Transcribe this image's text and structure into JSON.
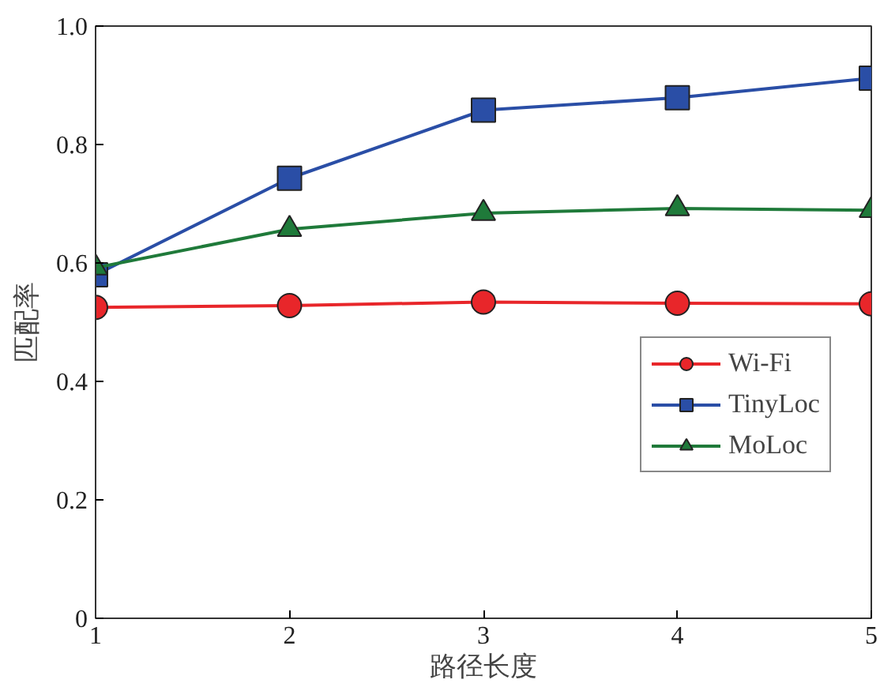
{
  "chart_data": {
    "type": "line",
    "xlabel": "路径长度",
    "ylabel": "匹配率",
    "x": [
      1,
      2,
      3,
      4,
      5
    ],
    "xlim": [
      1,
      5
    ],
    "xticks": [
      1,
      2,
      3,
      4,
      5
    ],
    "ylim": [
      0,
      1.0
    ],
    "yticks": [
      0,
      0.2,
      0.4,
      0.6,
      0.8,
      {
        "value": 1.0,
        "label": "1.0"
      }
    ],
    "grid": false,
    "legend": "right",
    "series": [
      {
        "name": "Wi-Fi",
        "color": "#e8262a",
        "marker": "circle",
        "values": [
          0.525,
          0.528,
          0.534,
          0.532,
          0.531
        ]
      },
      {
        "name": "TinyLoc",
        "color": "#2a4ea6",
        "marker": "square",
        "values": [
          0.58,
          0.743,
          0.858,
          0.879,
          0.912
        ]
      },
      {
        "name": "MoLoc",
        "color": "#1f7a3a",
        "marker": "triangle",
        "values": [
          0.592,
          0.657,
          0.684,
          0.692,
          0.689
        ]
      }
    ]
  }
}
